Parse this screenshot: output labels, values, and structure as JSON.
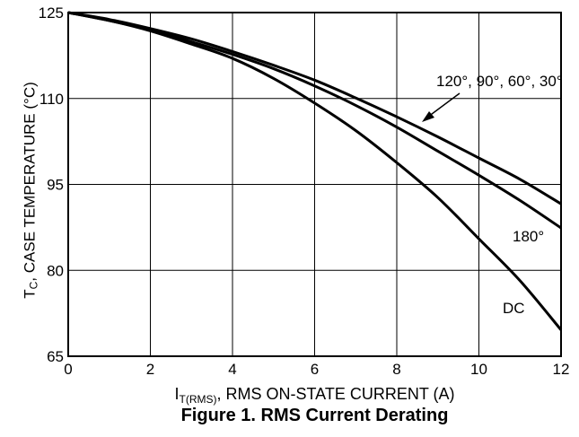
{
  "chart_data": {
    "type": "line",
    "caption": "Figure 1. RMS Current Derating",
    "xlabel": {
      "main": "I",
      "sub": "T(RMS)",
      "rest": ", RMS ON-STATE CURRENT (A)"
    },
    "ylabel": {
      "main": "T",
      "sub": "C",
      "rest": ", CASE TEMPERATURE (°C)"
    },
    "xlim": [
      0,
      12
    ],
    "ylim": [
      65,
      125
    ],
    "xticks": [
      0,
      2,
      4,
      6,
      8,
      10,
      12
    ],
    "yticks": [
      65,
      80,
      95,
      110,
      125
    ],
    "grid": true,
    "line_color": "#000000",
    "series": [
      {
        "name": "120°, 90°, 60°, 30°",
        "x": [
          0,
          1,
          2,
          3,
          4,
          5,
          6,
          7,
          8,
          9,
          10,
          11,
          12
        ],
        "y": [
          125,
          123.8,
          122.2,
          120.4,
          118.2,
          115.8,
          113.2,
          110.1,
          106.8,
          103.3,
          99.6,
          95.9,
          91.6
        ]
      },
      {
        "name": "180°",
        "x": [
          0,
          1,
          2,
          3,
          4,
          5,
          6,
          7,
          8,
          9,
          10,
          11,
          12
        ],
        "y": [
          125,
          123.6,
          122,
          119.9,
          117.7,
          115.2,
          112.2,
          108.8,
          105.0,
          100.8,
          96.6,
          92.2,
          87.4
        ]
      },
      {
        "name": "DC",
        "x": [
          0,
          1,
          2,
          3,
          4,
          5,
          6,
          7,
          8,
          9,
          10,
          11,
          12
        ],
        "y": [
          125,
          123.6,
          121.8,
          119.5,
          117.0,
          113.5,
          109.2,
          104.4,
          98.8,
          92.7,
          85.5,
          78.2,
          69.6
        ]
      }
    ]
  }
}
